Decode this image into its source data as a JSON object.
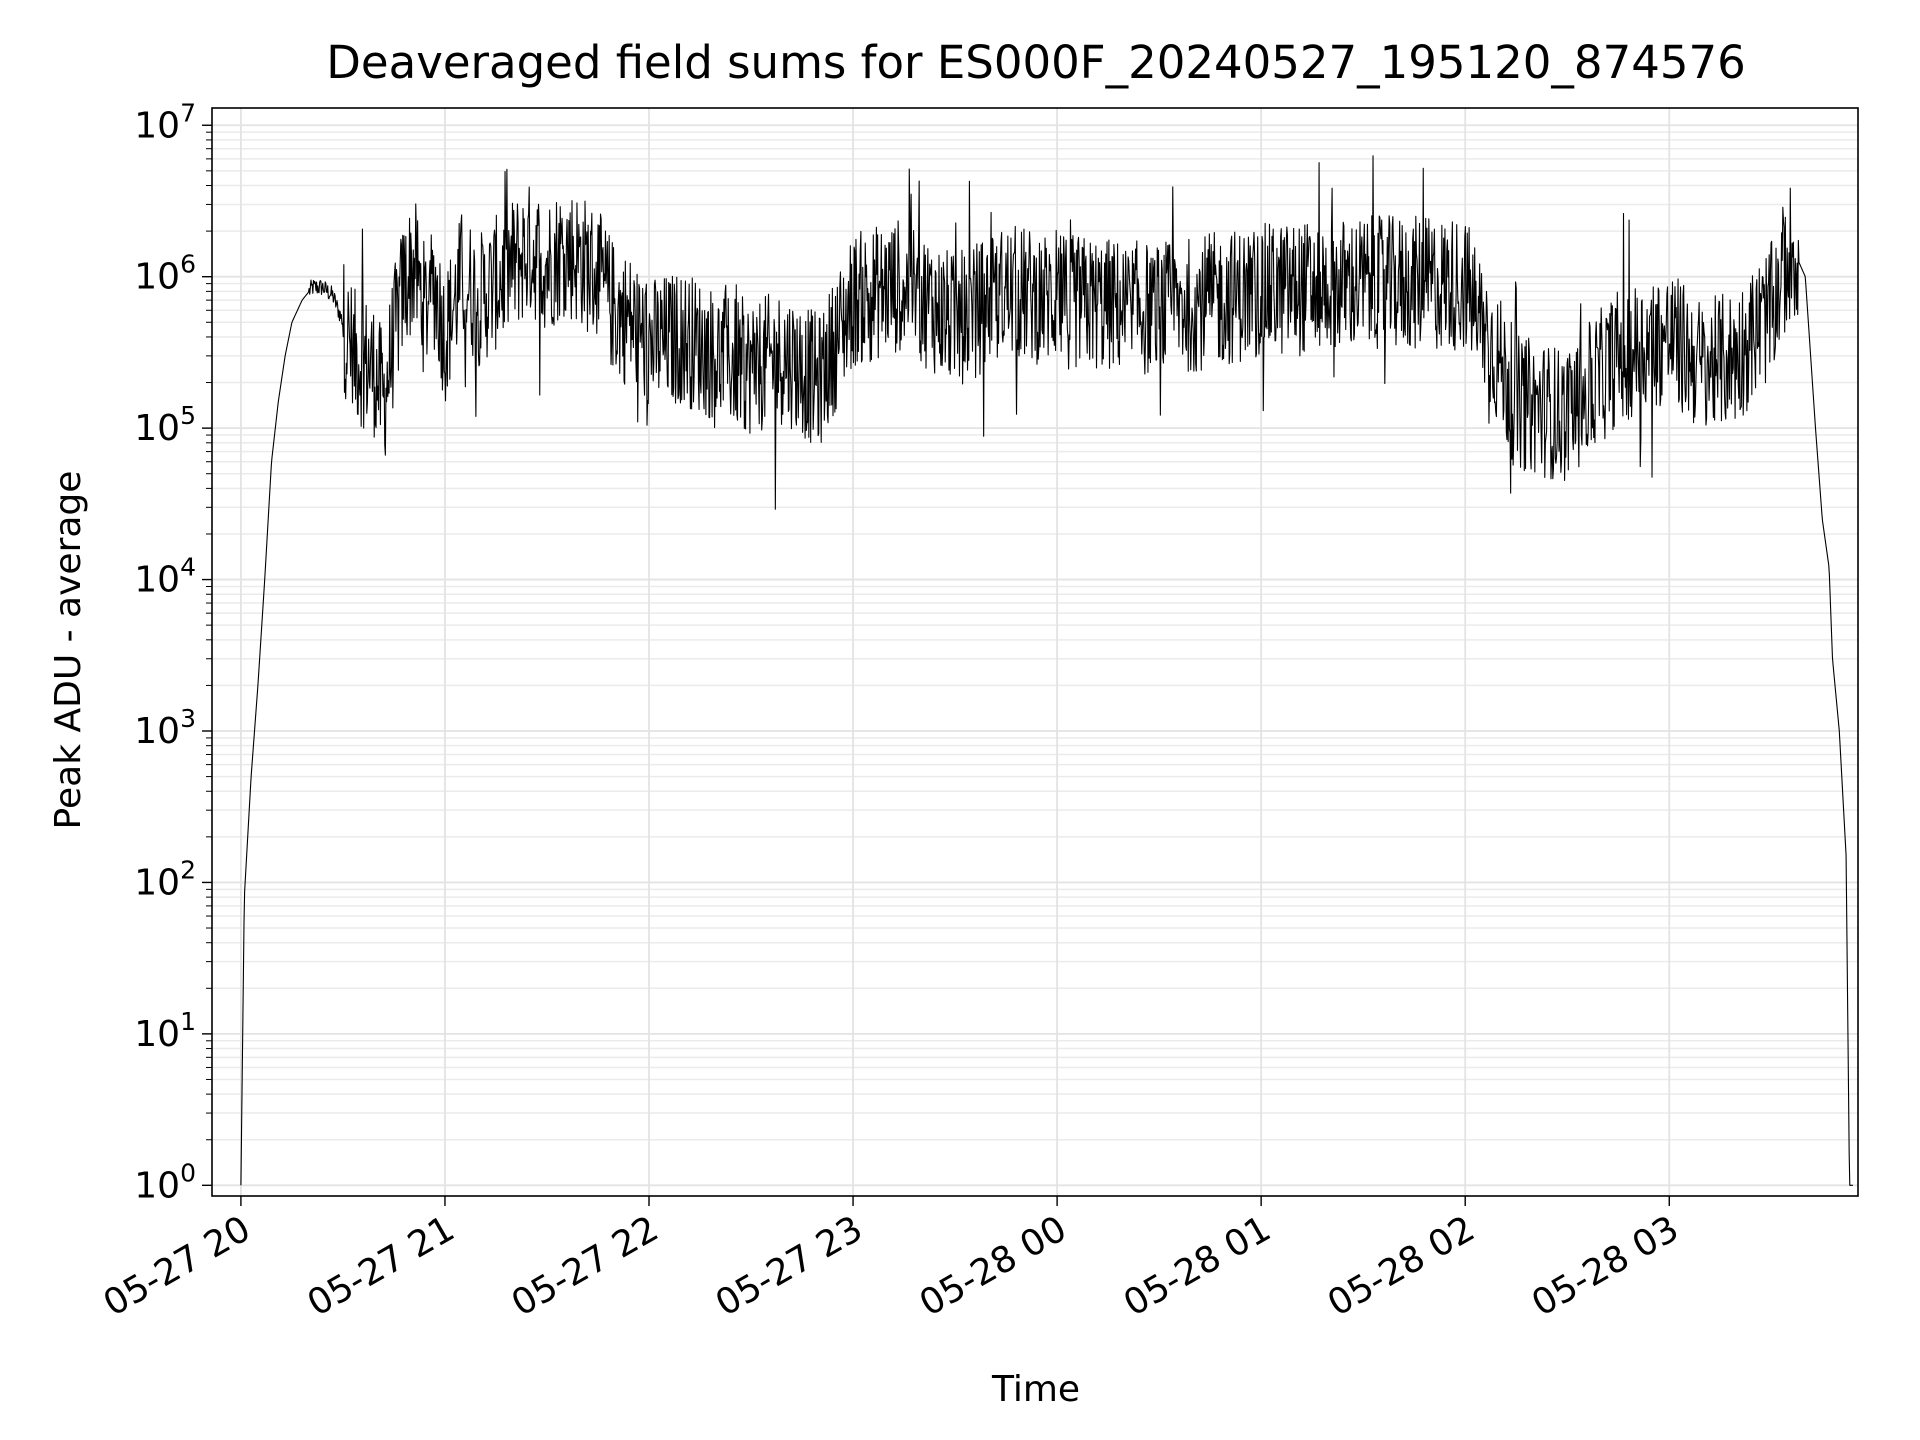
{
  "chart_data": {
    "type": "line",
    "title": "Deaveraged field sums for ES000F_20240527_195120_874576",
    "xlabel": "Time",
    "ylabel": "Peak ADU - average",
    "yscale": "log",
    "ylim": [
      0.85,
      13000000
    ],
    "xlim": [
      "2024-05-27 19:51:30",
      "2024-05-28 03:55:30"
    ],
    "grid": true,
    "legend": "none",
    "line_color": "#000000",
    "x_ticks": [
      {
        "value": "2024-05-27 20:00",
        "label": "05-27 20"
      },
      {
        "value": "2024-05-27 21:00",
        "label": "05-27 21"
      },
      {
        "value": "2024-05-27 22:00",
        "label": "05-27 22"
      },
      {
        "value": "2024-05-27 23:00",
        "label": "05-27 23"
      },
      {
        "value": "2024-05-28 00:00",
        "label": "05-28 00"
      },
      {
        "value": "2024-05-28 01:00",
        "label": "05-28 01"
      },
      {
        "value": "2024-05-28 02:00",
        "label": "05-28 02"
      },
      {
        "value": "2024-05-28 03:00",
        "label": "05-28 03"
      }
    ],
    "y_ticks": [
      {
        "value": 1,
        "base": "10",
        "exp": "0"
      },
      {
        "value": 10,
        "base": "10",
        "exp": "1"
      },
      {
        "value": 100,
        "base": "10",
        "exp": "2"
      },
      {
        "value": 1000,
        "base": "10",
        "exp": "3"
      },
      {
        "value": 10000,
        "base": "10",
        "exp": "4"
      },
      {
        "value": 100000,
        "base": "10",
        "exp": "5"
      },
      {
        "value": 1000000,
        "base": "10",
        "exp": "6"
      },
      {
        "value": 10000000,
        "base": "10",
        "exp": "7"
      }
    ],
    "series": [
      {
        "x": [
          "2024-05-27 20:00",
          "2024-05-27 20:01",
          "2024-05-27 20:03",
          "2024-05-27 20:05",
          "2024-05-27 20:07",
          "2024-05-27 20:09",
          "2024-05-27 20:11",
          "2024-05-27 20:13",
          "2024-05-27 20:15",
          "2024-05-27 20:18",
          "2024-05-27 20:21",
          "2024-05-27 20:24",
          "2024-05-27 20:27",
          "2024-05-27 20:30",
          "2024-05-27 20:33",
          "2024-05-27 20:36",
          "2024-05-27 20:39",
          "2024-05-27 20:42",
          "2024-05-27 20:45",
          "2024-05-27 20:48",
          "2024-05-27 20:51",
          "2024-05-27 20:54",
          "2024-05-27 20:57",
          "2024-05-27 21:00",
          "2024-05-27 21:05",
          "2024-05-27 21:10",
          "2024-05-27 21:15",
          "2024-05-27 21:20",
          "2024-05-27 21:25",
          "2024-05-27 21:30",
          "2024-05-27 21:35",
          "2024-05-27 21:40",
          "2024-05-27 21:45",
          "2024-05-27 21:50",
          "2024-05-27 21:55",
          "2024-05-27 22:00",
          "2024-05-27 22:10",
          "2024-05-27 22:20",
          "2024-05-27 22:30",
          "2024-05-27 22:40",
          "2024-05-27 22:50",
          "2024-05-27 23:00",
          "2024-05-27 23:15",
          "2024-05-27 23:30",
          "2024-05-27 23:45",
          "2024-05-28 00:00",
          "2024-05-28 00:30",
          "2024-05-28 01:00",
          "2024-05-28 01:30",
          "2024-05-28 02:00",
          "2024-05-28 02:15",
          "2024-05-28 02:30",
          "2024-05-28 02:45",
          "2024-05-28 03:00",
          "2024-05-28 03:10",
          "2024-05-28 03:20",
          "2024-05-28 03:30",
          "2024-05-28 03:36",
          "2024-05-28 03:40",
          "2024-05-28 03:43",
          "2024-05-28 03:45",
          "2024-05-28 03:47",
          "2024-05-28 03:48",
          "2024-05-28 03:50",
          "2024-05-28 03:52",
          "2024-05-28 03:53",
          "2024-05-28 03:54"
        ],
        "y": [
          1,
          80,
          500,
          2000,
          10000,
          60000,
          150000,
          300000,
          500000,
          700000,
          850000,
          850000,
          750000,
          500000,
          300000,
          280000,
          250000,
          150000,
          400000,
          900000,
          1200000,
          600000,
          900000,
          400000,
          1000000,
          700000,
          900000,
          1200000,
          1500000,
          1200000,
          1500000,
          1300000,
          1000000,
          600000,
          500000,
          350000,
          400000,
          300000,
          250000,
          300000,
          200000,
          700000,
          900000,
          500000,
          800000,
          700000,
          600000,
          800000,
          900000,
          900000,
          150000,
          120000,
          300000,
          400000,
          250000,
          300000,
          600000,
          1600000,
          1000000,
          100000,
          25000,
          12000,
          3000,
          1000,
          150,
          1,
          1
        ]
      }
    ]
  }
}
